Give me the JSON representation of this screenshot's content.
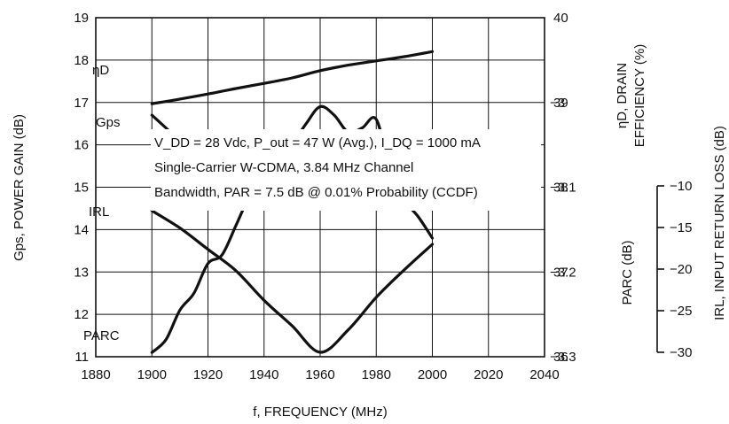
{
  "chart_data": {
    "type": "line",
    "title": "",
    "annotation_lines": [
      "V_DD = 28 Vdc, P_out = 47 W (Avg.), I_DQ = 1000 mA",
      "Single-Carrier W-CDMA, 3.84 MHz Channel",
      "Bandwidth, PAR = 7.5 dB @ 0.01% Probability (CCDF)"
    ],
    "xlabel": "f, FREQUENCY (MHz)",
    "x_ticks": [
      "1880",
      "1900",
      "1920",
      "1940",
      "1960",
      "1980",
      "2000",
      "2020",
      "2040"
    ],
    "xlim": [
      1880,
      2040
    ],
    "axes": {
      "gps": {
        "label": "Gps, POWER GAIN (dB)",
        "ylim": [
          11,
          19
        ],
        "ticks": [
          "11",
          "12",
          "13",
          "14",
          "15",
          "16",
          "17",
          "18",
          "19"
        ]
      },
      "drain": {
        "label_line1": "ηD, DRAIN",
        "label_line2": "EFFICIENCY (%)",
        "ylim": [
          36,
          40
        ],
        "ticks": [
          "36",
          "37",
          "38",
          "39",
          "40"
        ]
      },
      "parc": {
        "label": "PARC (dB)",
        "ylim": [
          -3.3,
          -2.9
        ],
        "ticks": [
          "-3",
          "-3.1",
          "-3.2",
          "-3.3"
        ]
      },
      "irl": {
        "label": "IRL, INPUT RETURN LOSS (dB)",
        "ylim": [
          -30,
          -10
        ],
        "ticks": [
          "-10",
          "-15",
          "-20",
          "-25",
          "-30"
        ]
      }
    },
    "grid": true,
    "series": [
      {
        "name": "ηD",
        "axis": "drain",
        "x": [
          1900,
          1905,
          1910,
          1915,
          1920,
          1925,
          1930,
          1935,
          1940,
          1945,
          1950,
          1955,
          1960,
          1965,
          1970,
          1975,
          1980,
          1985,
          1990,
          1995,
          2000
        ],
        "y": [
          38.85,
          38.7,
          38.55,
          38.5,
          38.2,
          38.2,
          38.1,
          37.98,
          37.98,
          37.8,
          37.92,
          37.82,
          37.84,
          37.98,
          38.08,
          38.08,
          38.04,
          38.22,
          38.25,
          38.35,
          38.5
        ]
      },
      {
        "name": "Gps",
        "axis": "gps",
        "x": [
          1900,
          1910,
          1920,
          1930,
          1940,
          1950,
          1960,
          1970,
          1980,
          1990,
          2000
        ],
        "y": [
          16.97,
          17.08,
          17.2,
          17.33,
          17.45,
          17.58,
          17.75,
          17.88,
          17.98,
          18.08,
          18.2
        ]
      },
      {
        "name": "IRL",
        "axis": "irl",
        "x": [
          1900,
          1910,
          1920,
          1930,
          1940,
          1950,
          1960,
          1970,
          1980,
          1990,
          2000
        ],
        "y": [
          -11.5,
          -13.2,
          -15.3,
          -17.4,
          -20.3,
          -22.8,
          -25.4,
          -23.2,
          -20,
          -17.3,
          -14.8
        ]
      },
      {
        "name": "PARC",
        "axis": "parc",
        "x": [
          1900,
          1905,
          1910,
          1915,
          1920,
          1925,
          1930,
          1935,
          1940,
          1945,
          1950,
          1955,
          1960,
          1965,
          1970,
          1975,
          1980,
          1985,
          1990,
          1995,
          2000
        ],
        "y": [
          -3.295,
          -3.28,
          -3.245,
          -3.225,
          -3.19,
          -3.18,
          -3.145,
          -3.11,
          -3.095,
          -3.075,
          -3.05,
          -3.025,
          -3.005,
          -3.015,
          -3.035,
          -3.03,
          -3.02,
          -3.08,
          -3.115,
          -3.135,
          -3.16
        ]
      }
    ]
  }
}
